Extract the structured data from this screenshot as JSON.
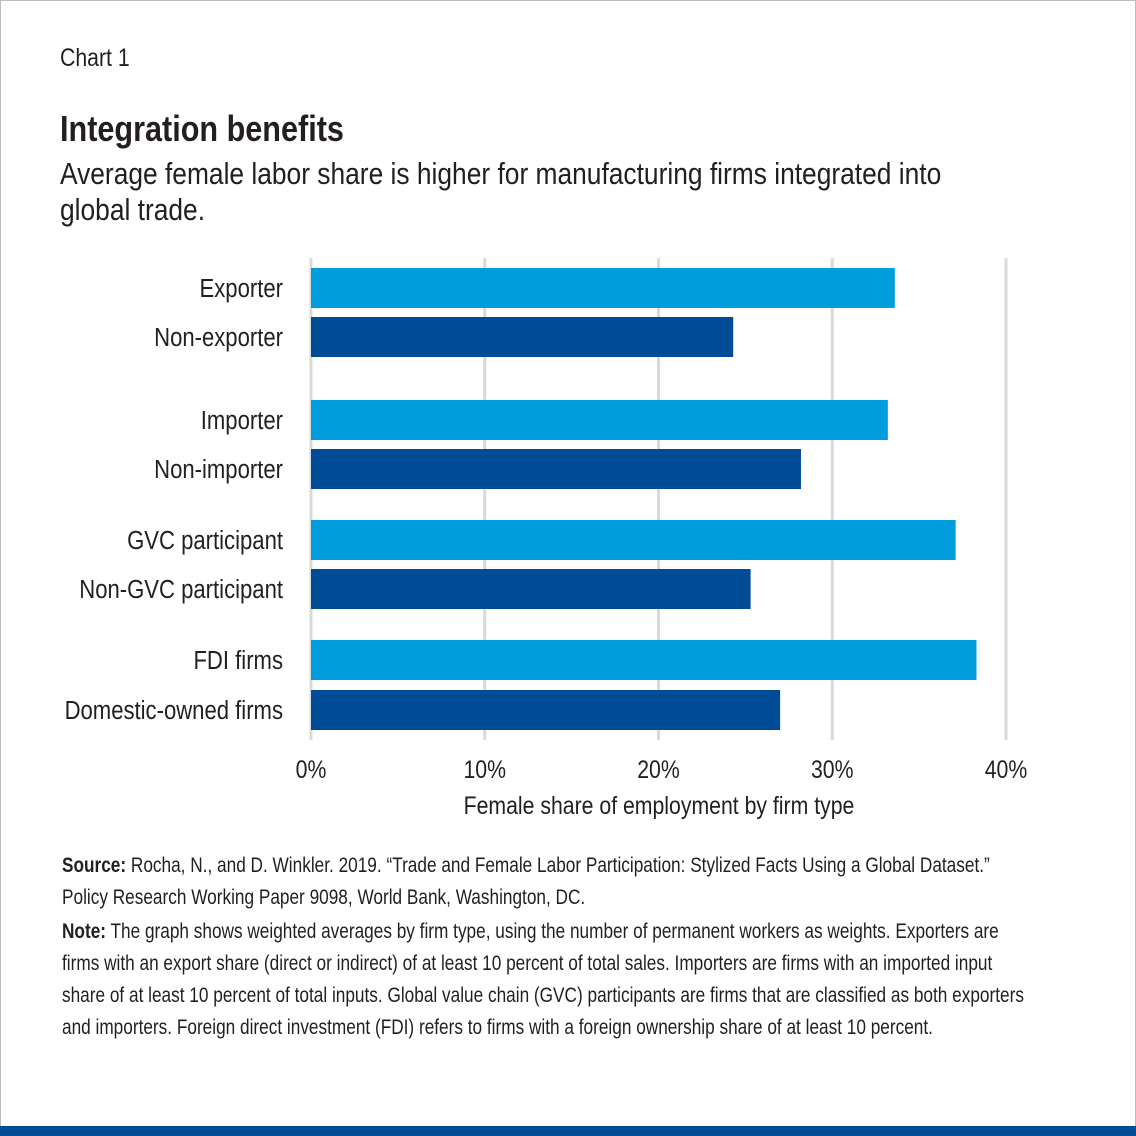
{
  "kicker": "Chart 1",
  "title": "Integration benefits",
  "subtitle": "Average female labor share is higher for manufacturing firms integrated into global trade.",
  "colors": {
    "integrated": "#009ddc",
    "non_integrated": "#004c97",
    "grid": "#d9d9d9"
  },
  "chart_data": {
    "type": "bar",
    "orientation": "horizontal",
    "categories": [
      "Exporter",
      "Non-exporter",
      "Importer",
      "Non-importer",
      "GVC participant",
      "Non-GVC participant",
      "FDI firms",
      "Domestic-owned firms"
    ],
    "values": [
      33.6,
      24.3,
      33.2,
      28.2,
      37.1,
      25.3,
      38.3,
      27.0
    ],
    "xlabel": "Female share of employment by firm type",
    "xlim": [
      0,
      40
    ],
    "xticks": [
      "0%",
      "10%",
      "20%",
      "30%",
      "40%"
    ],
    "grid": true
  },
  "source": {
    "label": "Source:",
    "text": "Rocha, N., and D. Winkler. 2019. “Trade and Female Labor Participation: Stylized Facts Using a Global Dataset.” Policy Research Working Paper 9098, World Bank, Washington, DC."
  },
  "note": {
    "label": "Note:",
    "text": "The graph shows weighted averages by firm type, using the number of permanent workers as weights. Exporters are firms with an export share (direct or indirect) of at least 10 percent of total sales. Importers are firms with an imported input share of at least 10 percent of total inputs. Global value chain (GVC) participants are firms that are classified as both exporters and importers. Foreign direct investment (FDI) refers to firms with a foreign ownership share of at least 10 percent."
  }
}
